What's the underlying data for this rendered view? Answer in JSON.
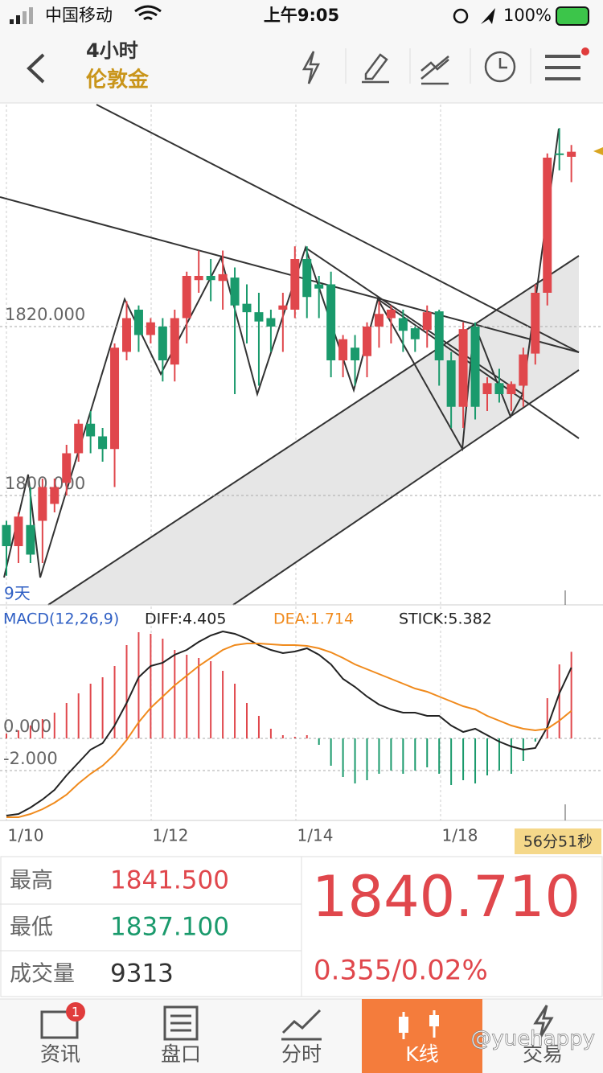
{
  "status_bar": {
    "carrier": "中国移动",
    "time": "上午9:05",
    "battery": "100%"
  },
  "header": {
    "period": "4小时",
    "name": "伦敦金"
  },
  "chart_data": {
    "type": "candlestick",
    "yticks": [
      {
        "value": 1820,
        "label": "1820.000"
      },
      {
        "value": 1800,
        "label": "1800.000"
      }
    ],
    "range_label": "9天",
    "x_labels": [
      "1/10",
      "1/12",
      "1/14",
      "1/18"
    ],
    "up_color": "#e0474c",
    "down_color": "#1a9a6c",
    "open": [
      1796.5,
      1794,
      1796.5,
      1797,
      1799,
      1801.5,
      1805,
      1808.5,
      1807,
      1805.5,
      1817,
      1822,
      1819,
      1820,
      1815.5,
      1821,
      1825.5,
      1826,
      1825.4,
      1825.8,
      1822.7,
      1821.7,
      1821,
      1822,
      1822,
      1828,
      1825,
      1825,
      1816,
      1817.5,
      1816.5,
      1820,
      1821,
      1821,
      1819.8,
      1819.6,
      1821.8,
      1816,
      1810.5,
      1820,
      1812,
      1813.3,
      1812,
      1813,
      1816.8,
      1824,
      1840.5,
      1840.1
    ],
    "close": [
      1794,
      1797.5,
      1793,
      1801,
      1801,
      1805,
      1808.5,
      1807,
      1805.5,
      1817.5,
      1821,
      1819,
      1820.5,
      1816,
      1821,
      1826,
      1826,
      1825.5,
      1826.2,
      1822.5,
      1821.7,
      1820.6,
      1820,
      1822.5,
      1828,
      1823.5,
      1824.5,
      1816,
      1818.5,
      1816,
      1820,
      1821.5,
      1822,
      1819.5,
      1818.5,
      1821.7,
      1816,
      1810.5,
      1819.7,
      1810.5,
      1813.3,
      1812,
      1813.2,
      1816.7,
      1824,
      1840,
      1840.4,
      1840.7
    ],
    "high": [
      1797,
      1798,
      1801,
      1802,
      1802,
      1806,
      1809,
      1810,
      1808,
      1818,
      1823,
      1822.5,
      1821,
      1821,
      1822,
      1826.5,
      1829,
      1828,
      1829,
      1827,
      1825,
      1824,
      1822,
      1824,
      1829.5,
      1829.5,
      1826,
      1826.5,
      1819,
      1819,
      1820.5,
      1823,
      1822.5,
      1822,
      1820,
      1822.5,
      1822,
      1817,
      1820.5,
      1820.5,
      1814,
      1815,
      1813.5,
      1817.5,
      1825,
      1840.5,
      1843.5,
      1841.5
    ],
    "low": [
      1790.5,
      1792,
      1792,
      1792,
      1798,
      1800,
      1804,
      1805,
      1804,
      1801,
      1816,
      1817,
      1818,
      1813.5,
      1813.5,
      1818,
      1824,
      1823,
      1822,
      1812,
      1818,
      1813,
      1817,
      1817,
      1821,
      1821,
      1821,
      1814,
      1814,
      1813,
      1814,
      1817.5,
      1818,
      1817,
      1817,
      1817.5,
      1813,
      1808,
      1808,
      1809,
      1810,
      1811,
      1810,
      1810.5,
      1815.5,
      1822.5,
      1838.5,
      1837.1
    ],
    "macd": {
      "title": "MACD(12,26,9)",
      "diff_label": "DIFF:4.405",
      "dea_label": "DEA:1.714",
      "stick_label": "STICK:5.382",
      "yticks": [
        {
          "value": 0,
          "label": "0.000"
        },
        {
          "value": -2,
          "label": "-2.000"
        }
      ],
      "diff_color": "#222222",
      "dea_color": "#f08a1c",
      "stick": [
        0.3,
        0.5,
        0.8,
        1.2,
        1.6,
        2.2,
        2.8,
        3.4,
        3.8,
        4.5,
        5.8,
        6.6,
        6.5,
        6.2,
        5.5,
        5.2,
        5,
        4.8,
        4.2,
        3.4,
        2.2,
        1.4,
        0.6,
        0.2,
        0.1,
        0.2,
        -0.4,
        -1.7,
        -2.4,
        -2.8,
        -2.6,
        -2.2,
        -2,
        -2.2,
        -2,
        -1.8,
        -2.2,
        -2.9,
        -2.6,
        -2.8,
        -2.3,
        -2,
        -2.2,
        -1.4,
        -0.2,
        2.5,
        4.6,
        5.382
      ],
      "diff": [
        -4.8,
        -4.7,
        -4.3,
        -3.8,
        -3.2,
        -2.3,
        -1.5,
        -0.7,
        -0.3,
        0.8,
        2.2,
        3.8,
        4.5,
        4.7,
        5.2,
        5.5,
        6,
        6.4,
        6.65,
        6.5,
        6.2,
        5.8,
        5.5,
        5.3,
        5.4,
        5.6,
        5.2,
        4.6,
        3.7,
        3.2,
        2.6,
        2.1,
        1.8,
        1.6,
        1.6,
        1.4,
        1.4,
        0.8,
        0.4,
        0.6,
        0.2,
        -0.2,
        -0.5,
        -0.7,
        -0.6,
        0.7,
        2.8,
        4.405
      ],
      "dea": [
        -4.9,
        -4.9,
        -4.7,
        -4.4,
        -4,
        -3.5,
        -2.8,
        -2.2,
        -1.7,
        -1,
        -0.1,
        1,
        1.9,
        2.6,
        3.3,
        3.9,
        4.5,
        5,
        5.5,
        5.8,
        5.9,
        5.9,
        5.85,
        5.8,
        5.8,
        5.75,
        5.6,
        5.35,
        5,
        4.6,
        4.3,
        4,
        3.7,
        3.4,
        3.1,
        2.9,
        2.6,
        2.3,
        2,
        1.8,
        1.4,
        1.1,
        0.8,
        0.6,
        0.5,
        0.6,
        1.1,
        1.714
      ]
    }
  },
  "countdown": "56分51秒",
  "quote": {
    "high_label": "最高",
    "high": "1841.500",
    "low_label": "最低",
    "low": "1837.100",
    "volume_label": "成交量",
    "volume": "9313",
    "price": "1840.710",
    "change": "0.355/0.02%"
  },
  "tabs": [
    {
      "label": "资讯",
      "badge": "1"
    },
    {
      "label": "盘口"
    },
    {
      "label": "分时"
    },
    {
      "label": "K线"
    },
    {
      "label": "交易"
    }
  ],
  "watermark": "@yuehappy"
}
